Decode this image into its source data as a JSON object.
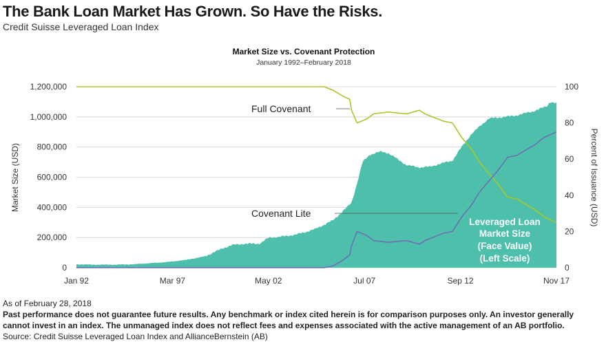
{
  "header": {
    "title": "The Bank Loan Market Has Grown. So Have the Risks.",
    "subtitle": "Credit Suisse Leveraged Loan Index"
  },
  "footer": {
    "asof": "As of February 28, 2018",
    "disclaimer_line1": "Past performance does not guarantee future results. Any benchmark or index cited herein is for comparison purposes only.  An investor generally",
    "disclaimer_line2": "cannot invest in an index. The unmanaged index does not reflect fees and expenses associated with the active management of an AB portfolio.",
    "source": "Source: Credit Suisse Leveraged Loan Index and AllianceBernstein (AB)"
  },
  "colors": {
    "area": "#4dbfab",
    "full_covenant": "#a8c72a",
    "covenant_lite": "#6b6fb4",
    "grid": "#cfcfcf",
    "text": "#333333"
  },
  "chart_data": {
    "type": "area",
    "title": "Market Size  vs. Covenant Protection",
    "subtitle": "January 1992–February 2018",
    "xlabel": "",
    "ylabel": "Market Size (USD)",
    "y2label": "Percent of Issuance (USD)",
    "x_ticks": [
      "Jan 92",
      "Mar 97",
      "May 02",
      "Jul 07",
      "Sep 12",
      "Nov 17"
    ],
    "x_range": [
      1992.0,
      2018.17
    ],
    "ylim": [
      0,
      1200000
    ],
    "y_ticks": [
      "0",
      "200,000",
      "400,000",
      "600,000",
      "800,000",
      "1,000,000",
      "1,200,000"
    ],
    "y2lim": [
      0,
      100
    ],
    "y2_ticks": [
      "0",
      "20",
      "40",
      "60",
      "80",
      "100"
    ],
    "grid": true,
    "annotations": {
      "full_covenant": "Full Covenant",
      "covenant_lite": "Covenant Lite",
      "area_label_lines": [
        "Leveraged Loan",
        "Market Size",
        "(Face Value)",
        "(Left Scale)"
      ]
    },
    "series": [
      {
        "name": "Leveraged Loan Market Size (Face Value) (Left Scale)",
        "axis": "left",
        "kind": "area",
        "points": [
          [
            1992.0,
            22000
          ],
          [
            1993.0,
            20000
          ],
          [
            1994.0,
            20000
          ],
          [
            1995.0,
            22000
          ],
          [
            1996.0,
            30000
          ],
          [
            1997.0,
            38000
          ],
          [
            1998.0,
            52000
          ],
          [
            1999.0,
            75000
          ],
          [
            2000.0,
            130000
          ],
          [
            2000.5,
            150000
          ],
          [
            2001.0,
            158000
          ],
          [
            2002.0,
            160000
          ],
          [
            2002.5,
            200000
          ],
          [
            2003.0,
            203000
          ],
          [
            2004.0,
            220000
          ],
          [
            2005.0,
            255000
          ],
          [
            2006.0,
            315000
          ],
          [
            2007.0,
            430000
          ],
          [
            2007.3,
            560000
          ],
          [
            2007.6,
            700000
          ],
          [
            2008.0,
            750000
          ],
          [
            2008.6,
            770000
          ],
          [
            2009.0,
            760000
          ],
          [
            2009.5,
            720000
          ],
          [
            2010.0,
            680000
          ],
          [
            2010.7,
            665000
          ],
          [
            2011.3,
            670000
          ],
          [
            2012.0,
            695000
          ],
          [
            2012.5,
            710000
          ],
          [
            2013.0,
            800000
          ],
          [
            2013.5,
            880000
          ],
          [
            2014.0,
            940000
          ],
          [
            2014.5,
            990000
          ],
          [
            2015.0,
            995000
          ],
          [
            2016.0,
            1010000
          ],
          [
            2017.0,
            1040000
          ],
          [
            2017.7,
            1075000
          ],
          [
            2017.8,
            1100000
          ],
          [
            2018.17,
            1090000
          ]
        ]
      },
      {
        "name": "Full Covenant",
        "axis": "right",
        "kind": "line",
        "points": [
          [
            1992.0,
            100
          ],
          [
            2005.5,
            100
          ],
          [
            2006.0,
            98
          ],
          [
            2006.5,
            95
          ],
          [
            2006.9,
            93
          ],
          [
            2007.0,
            87
          ],
          [
            2007.3,
            80
          ],
          [
            2007.8,
            82
          ],
          [
            2008.2,
            85
          ],
          [
            2009.0,
            86
          ],
          [
            2010.0,
            85
          ],
          [
            2010.7,
            87
          ],
          [
            2011.0,
            85
          ],
          [
            2011.5,
            83
          ],
          [
            2012.0,
            81
          ],
          [
            2012.5,
            80
          ],
          [
            2013.0,
            72
          ],
          [
            2013.5,
            66
          ],
          [
            2014.0,
            58
          ],
          [
            2014.5,
            52
          ],
          [
            2015.0,
            46
          ],
          [
            2015.5,
            39
          ],
          [
            2016.0,
            38
          ],
          [
            2016.5,
            35
          ],
          [
            2017.0,
            32
          ],
          [
            2017.5,
            28
          ],
          [
            2018.17,
            25
          ]
        ]
      },
      {
        "name": "Covenant Lite",
        "axis": "right",
        "kind": "line",
        "points": [
          [
            1992.0,
            0
          ],
          [
            2005.5,
            0
          ],
          [
            2006.0,
            1
          ],
          [
            2006.5,
            4
          ],
          [
            2006.9,
            7
          ],
          [
            2007.0,
            12
          ],
          [
            2007.3,
            20
          ],
          [
            2007.8,
            18
          ],
          [
            2008.2,
            15
          ],
          [
            2009.0,
            14
          ],
          [
            2010.0,
            15
          ],
          [
            2010.7,
            13
          ],
          [
            2011.0,
            15
          ],
          [
            2011.5,
            17
          ],
          [
            2012.0,
            19
          ],
          [
            2012.5,
            20
          ],
          [
            2013.0,
            28
          ],
          [
            2013.5,
            34
          ],
          [
            2014.0,
            42
          ],
          [
            2014.5,
            48
          ],
          [
            2015.0,
            54
          ],
          [
            2015.5,
            61
          ],
          [
            2016.0,
            62
          ],
          [
            2016.5,
            65
          ],
          [
            2017.0,
            68
          ],
          [
            2017.5,
            72
          ],
          [
            2018.17,
            75
          ]
        ]
      }
    ]
  }
}
